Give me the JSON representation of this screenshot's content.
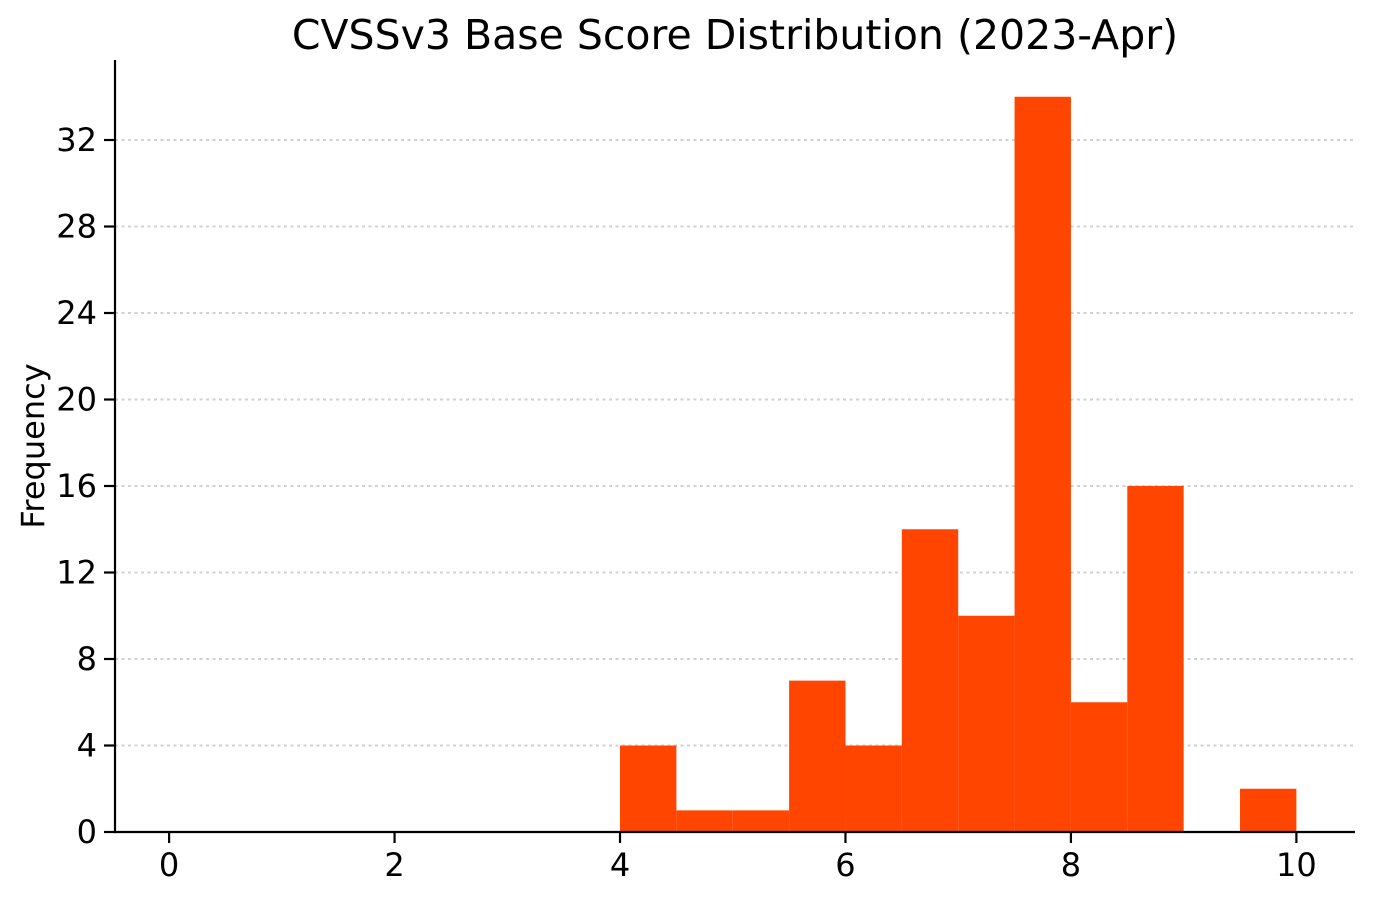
{
  "chart_data": {
    "type": "bar",
    "subtype": "histogram",
    "title": "CVSSv3 Base Score Distribution (2023-Apr)",
    "xlabel": "",
    "ylabel": "Frequency",
    "bin_width": 0.5,
    "bin_edges": [
      4.0,
      4.5,
      5.0,
      5.5,
      6.0,
      6.5,
      7.0,
      7.5,
      8.0,
      8.5,
      9.0,
      9.5,
      10.0
    ],
    "frequencies": [
      4,
      1,
      1,
      7,
      4,
      14,
      10,
      34,
      6,
      16,
      0,
      2
    ],
    "x_ticks": [
      0,
      2,
      4,
      6,
      8,
      10
    ],
    "y_ticks": [
      0,
      4,
      8,
      12,
      16,
      20,
      24,
      28,
      32
    ],
    "xlim": [
      -0.48,
      10.52
    ],
    "ylim": [
      0,
      35.7
    ],
    "bar_color": "#FF4500",
    "axis_color": "#000000",
    "grid_color": "#d2d2d2",
    "grid": "y-only-dotted",
    "legend": "none",
    "background": "#ffffff"
  }
}
